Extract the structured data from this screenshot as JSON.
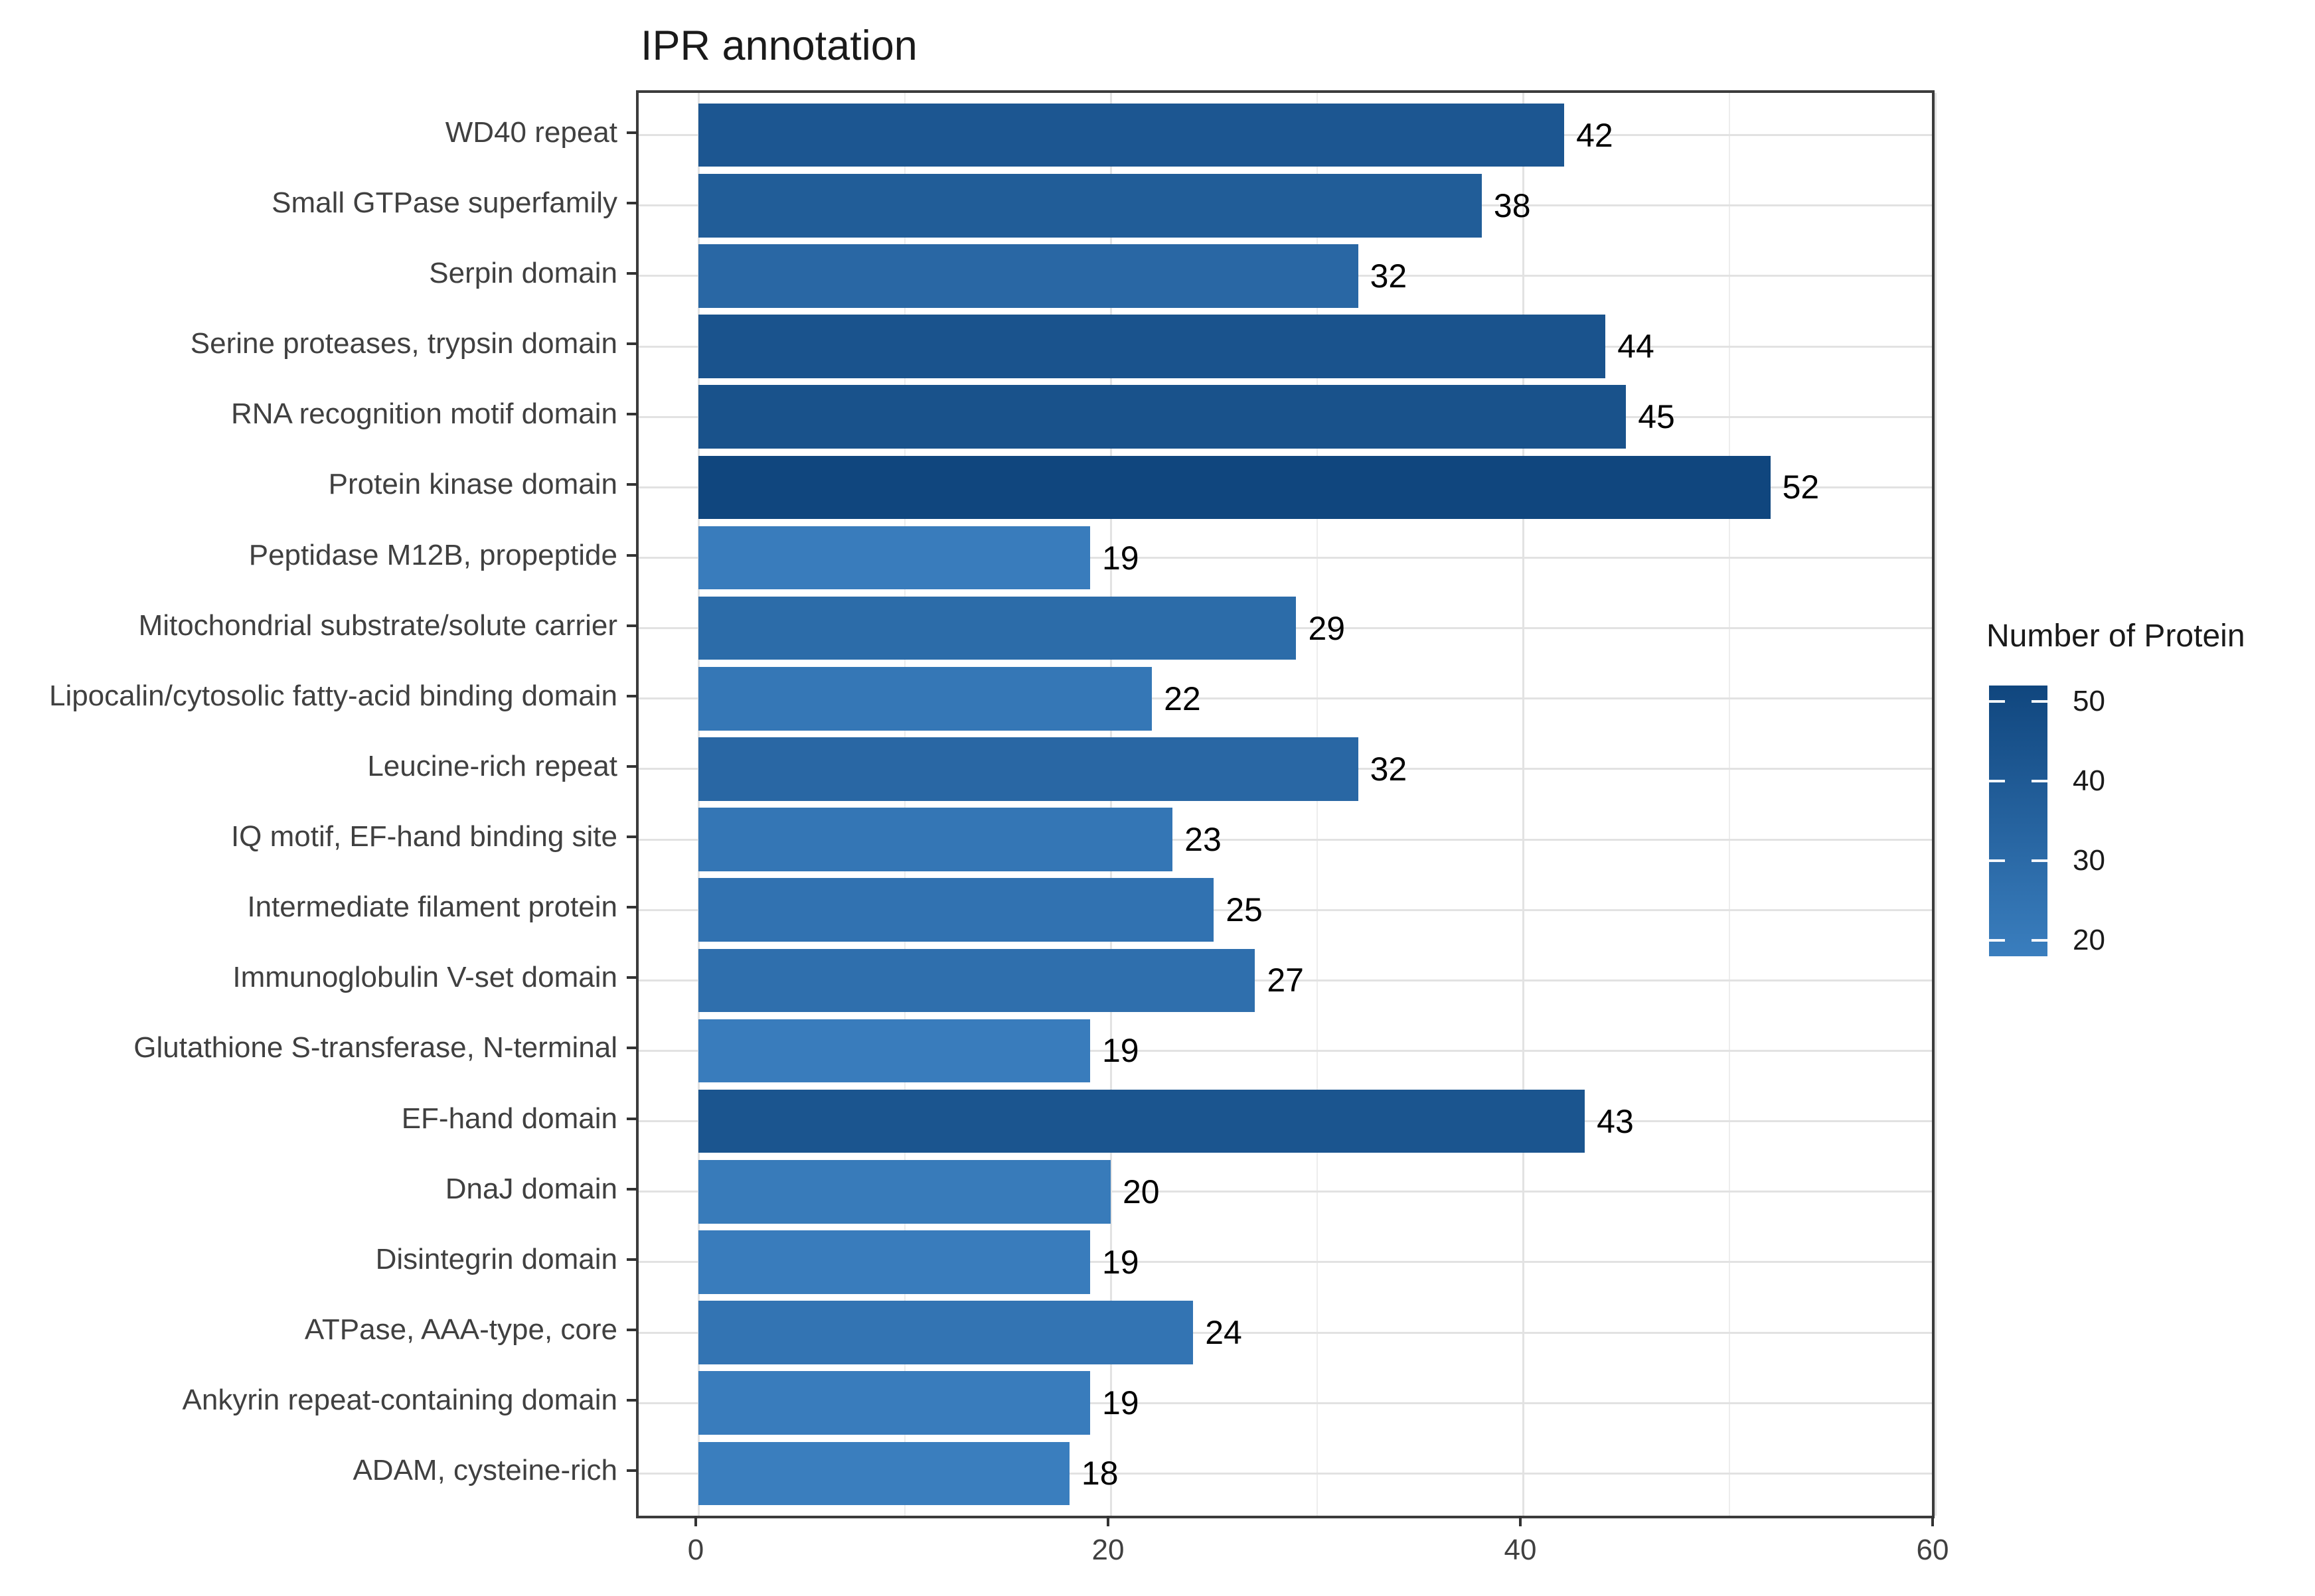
{
  "title": "IPR annotation",
  "legend": {
    "title": "Number of Protein",
    "ticks": [
      50,
      40,
      30,
      20
    ]
  },
  "x_axis": {
    "ticks": [
      0,
      20,
      40,
      60
    ],
    "minor_ticks": [
      10,
      30,
      50
    ]
  },
  "chart_data": {
    "type": "bar",
    "orientation": "horizontal",
    "title": "IPR annotation",
    "xlabel": "",
    "ylabel": "",
    "xlim": [
      0,
      60
    ],
    "grid": "on",
    "legend_position": "right",
    "legend_title": "Number of Protein",
    "legend_ticks": [
      50,
      40,
      30,
      20
    ],
    "categories": [
      "WD40 repeat",
      "Small GTPase superfamily",
      "Serpin domain",
      "Serine proteases, trypsin domain",
      "RNA recognition motif domain",
      "Protein kinase domain",
      "Peptidase M12B, propeptide",
      "Mitochondrial substrate/solute carrier",
      "Lipocalin/cytosolic fatty-acid binding domain",
      "Leucine-rich repeat",
      "IQ motif, EF-hand binding site",
      "Intermediate filament protein",
      "Immunoglobulin V-set domain",
      "Glutathione S-transferase, N-terminal",
      "EF-hand domain",
      "DnaJ domain",
      "Disintegrin domain",
      "ATPase, AAA-type, core",
      "Ankyrin repeat-containing domain",
      "ADAM, cysteine-rich"
    ],
    "values": [
      42,
      38,
      32,
      44,
      45,
      52,
      19,
      29,
      22,
      32,
      23,
      25,
      27,
      19,
      43,
      20,
      19,
      24,
      19,
      18
    ],
    "color_scale": {
      "label": "Number of Protein",
      "low_value": 18,
      "high_value": 52,
      "low_color": "#3A7EBE",
      "mid_color": "#25629E",
      "high_color": "#10467E"
    }
  }
}
